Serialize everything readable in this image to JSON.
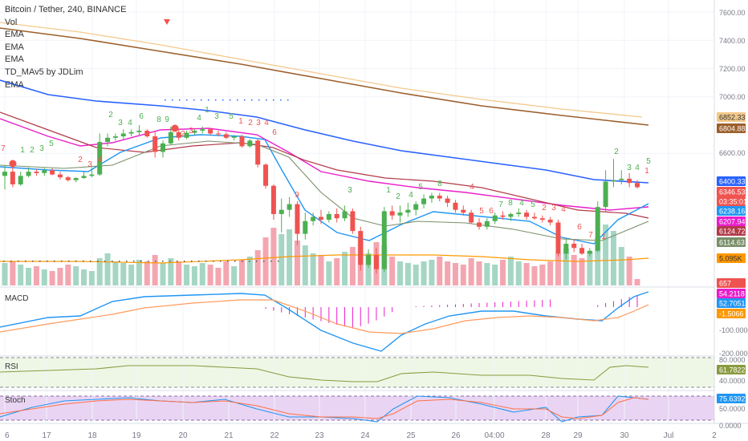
{
  "header": {
    "title": "Bitcoin / Tether, 240, BINANCE",
    "legend": [
      "Vol",
      "EMA",
      "EMA",
      "EMA",
      "TD_MAv5 by JDLim",
      "EMA"
    ]
  },
  "colors": {
    "up": "#4caf50",
    "down": "#ef5350",
    "vol_up": "#a5d6c4",
    "vol_down": "#f4a6b0",
    "ema_blue": "#2962ff",
    "ema_brown": "#9c5f2c",
    "ema_tan": "#f3c98b",
    "ema_magenta": "#e91ecb",
    "ema_dark_red": "#b23a48",
    "ema_light_blue": "#2196f3",
    "ema_grey_green": "#7a8f6a",
    "ema_orange": "#ff9800",
    "macd_line": "#2196f3",
    "signal_line": "#ff9a5c",
    "rsi_line": "#8a9a3f",
    "rsi_band": "#eef7e6",
    "stoch_band": "#e9d4f3",
    "stoch_k": "#2196f3",
    "stoch_d": "#ff7043"
  },
  "chart_data": {
    "type": "candlestick",
    "x_labels": [
      "6",
      "17",
      "18",
      "19",
      "20",
      "21",
      "22",
      "23",
      "24",
      "25",
      "26",
      "04:00",
      "28",
      "29",
      "30",
      "Jul",
      "2"
    ],
    "price_axis": {
      "ticks": [
        "7600.00",
        "7400.00",
        "7200.00",
        "7000.00",
        "6600.00"
      ],
      "labels": [
        {
          "text": "6852.33",
          "color": "#f3c98b",
          "dark": true
        },
        {
          "text": "6804.88",
          "color": "#9c5f2c",
          "dark": false
        },
        {
          "text": "6400.33",
          "color": "#2962ff",
          "dark": false
        },
        {
          "text": "6346.53",
          "color": "#ef5350",
          "dark": false
        },
        {
          "text": "03:35:01",
          "color": "#ef5350",
          "dark": false
        },
        {
          "text": "6238.16",
          "color": "#2196f3",
          "dark": false
        },
        {
          "text": "6207.94",
          "color": "#e91ecb",
          "dark": false
        },
        {
          "text": "6124.72",
          "color": "#b23a48",
          "dark": false
        },
        {
          "text": "6114.63",
          "color": "#7a8f6a",
          "dark": false
        },
        {
          "text": "5.095K",
          "color": "#ff9800",
          "dark": true
        },
        {
          "text": "657",
          "color": "#ef5350",
          "dark": false
        }
      ]
    },
    "macd": {
      "label": "MACD",
      "ticks": [
        "-100.0000",
        "-200.0000"
      ],
      "labels": [
        {
          "text": "54.2118",
          "color": "#e91ecb"
        },
        {
          "text": "52.7051",
          "color": "#2196f3"
        },
        {
          "text": "-1.5066",
          "color": "#ff9800"
        }
      ]
    },
    "rsi": {
      "label": "RSI",
      "ticks": [
        "80.0000",
        "40.0000"
      ],
      "value": "61.7822",
      "value_color": "#8a9a3f"
    },
    "stoch": {
      "label": "Stoch",
      "ticks": [
        "50.0000",
        "0.0000"
      ],
      "value": "75.6392",
      "value_color": "#2196f3"
    },
    "candles": [
      {
        "o": 6440,
        "h": 6510,
        "l": 6345,
        "c": 6470
      },
      {
        "o": 6470,
        "h": 6520,
        "l": 6360,
        "c": 6380
      },
      {
        "o": 6380,
        "h": 6470,
        "l": 6370,
        "c": 6440
      },
      {
        "o": 6440,
        "h": 6500,
        "l": 6430,
        "c": 6470
      },
      {
        "o": 6470,
        "h": 6490,
        "l": 6440,
        "c": 6460
      },
      {
        "o": 6460,
        "h": 6500,
        "l": 6440,
        "c": 6480
      },
      {
        "o": 6480,
        "h": 6495,
        "l": 6445,
        "c": 6450
      },
      {
        "o": 6450,
        "h": 6470,
        "l": 6415,
        "c": 6430
      },
      {
        "o": 6430,
        "h": 6440,
        "l": 6400,
        "c": 6410
      },
      {
        "o": 6410,
        "h": 6430,
        "l": 6395,
        "c": 6425
      },
      {
        "o": 6425,
        "h": 6470,
        "l": 6420,
        "c": 6440
      },
      {
        "o": 6440,
        "h": 6500,
        "l": 6430,
        "c": 6450
      },
      {
        "o": 6450,
        "h": 6740,
        "l": 6440,
        "c": 6680
      },
      {
        "o": 6680,
        "h": 6740,
        "l": 6650,
        "c": 6710
      },
      {
        "o": 6710,
        "h": 6740,
        "l": 6690,
        "c": 6720
      },
      {
        "o": 6720,
        "h": 6770,
        "l": 6700,
        "c": 6740
      },
      {
        "o": 6740,
        "h": 6770,
        "l": 6720,
        "c": 6750
      },
      {
        "o": 6750,
        "h": 6800,
        "l": 6730,
        "c": 6760
      },
      {
        "o": 6760,
        "h": 6770,
        "l": 6710,
        "c": 6720
      },
      {
        "o": 6720,
        "h": 6760,
        "l": 6570,
        "c": 6610
      },
      {
        "o": 6610,
        "h": 6690,
        "l": 6570,
        "c": 6670
      },
      {
        "o": 6670,
        "h": 6790,
        "l": 6660,
        "c": 6750
      },
      {
        "o": 6750,
        "h": 6770,
        "l": 6690,
        "c": 6710
      },
      {
        "o": 6710,
        "h": 6760,
        "l": 6700,
        "c": 6745
      },
      {
        "o": 6745,
        "h": 6770,
        "l": 6730,
        "c": 6760
      },
      {
        "o": 6760,
        "h": 6790,
        "l": 6740,
        "c": 6770
      },
      {
        "o": 6770,
        "h": 6780,
        "l": 6730,
        "c": 6740
      },
      {
        "o": 6740,
        "h": 6760,
        "l": 6720,
        "c": 6735
      },
      {
        "o": 6735,
        "h": 6750,
        "l": 6700,
        "c": 6710
      },
      {
        "o": 6710,
        "h": 6730,
        "l": 6690,
        "c": 6720
      },
      {
        "o": 6720,
        "h": 6730,
        "l": 6640,
        "c": 6650
      },
      {
        "o": 6650,
        "h": 6700,
        "l": 6640,
        "c": 6690
      },
      {
        "o": 6690,
        "h": 6700,
        "l": 6500,
        "c": 6520
      },
      {
        "o": 6520,
        "h": 6530,
        "l": 6350,
        "c": 6370
      },
      {
        "o": 6370,
        "h": 6380,
        "l": 6130,
        "c": 6170
      },
      {
        "o": 6170,
        "h": 6280,
        "l": 6040,
        "c": 6200
      },
      {
        "o": 6200,
        "h": 6290,
        "l": 6150,
        "c": 6240
      },
      {
        "o": 6240,
        "h": 6260,
        "l": 5950,
        "c": 6030
      },
      {
        "o": 6030,
        "h": 6180,
        "l": 5990,
        "c": 6120
      },
      {
        "o": 6120,
        "h": 6180,
        "l": 6090,
        "c": 6150
      },
      {
        "o": 6150,
        "h": 6200,
        "l": 6100,
        "c": 6130
      },
      {
        "o": 6130,
        "h": 6190,
        "l": 6110,
        "c": 6170
      },
      {
        "o": 6170,
        "h": 6210,
        "l": 6110,
        "c": 6140
      },
      {
        "o": 6140,
        "h": 6230,
        "l": 6120,
        "c": 6190
      },
      {
        "o": 6190,
        "h": 6210,
        "l": 6030,
        "c": 6050
      },
      {
        "o": 6050,
        "h": 6080,
        "l": 5770,
        "c": 5810
      },
      {
        "o": 5810,
        "h": 5920,
        "l": 5790,
        "c": 5880
      },
      {
        "o": 5880,
        "h": 5930,
        "l": 5750,
        "c": 5780
      },
      {
        "o": 5780,
        "h": 6220,
        "l": 5760,
        "c": 6190
      },
      {
        "o": 6190,
        "h": 6230,
        "l": 6130,
        "c": 6160
      },
      {
        "o": 6160,
        "h": 6230,
        "l": 6110,
        "c": 6180
      },
      {
        "o": 6180,
        "h": 6250,
        "l": 6150,
        "c": 6200
      },
      {
        "o": 6200,
        "h": 6260,
        "l": 6160,
        "c": 6240
      },
      {
        "o": 6240,
        "h": 6310,
        "l": 6210,
        "c": 6280
      },
      {
        "o": 6280,
        "h": 6320,
        "l": 6250,
        "c": 6300
      },
      {
        "o": 6300,
        "h": 6320,
        "l": 6260,
        "c": 6280
      },
      {
        "o": 6280,
        "h": 6300,
        "l": 6220,
        "c": 6250
      },
      {
        "o": 6250,
        "h": 6270,
        "l": 6180,
        "c": 6200
      },
      {
        "o": 6200,
        "h": 6230,
        "l": 6160,
        "c": 6180
      },
      {
        "o": 6180,
        "h": 6200,
        "l": 6100,
        "c": 6110
      },
      {
        "o": 6110,
        "h": 6140,
        "l": 6060,
        "c": 6080
      },
      {
        "o": 6080,
        "h": 6140,
        "l": 6060,
        "c": 6120
      },
      {
        "o": 6120,
        "h": 6180,
        "l": 6100,
        "c": 6160
      },
      {
        "o": 6160,
        "h": 6190,
        "l": 6130,
        "c": 6150
      },
      {
        "o": 6150,
        "h": 6180,
        "l": 6120,
        "c": 6170
      },
      {
        "o": 6170,
        "h": 6210,
        "l": 6150,
        "c": 6180
      },
      {
        "o": 6180,
        "h": 6200,
        "l": 6130,
        "c": 6150
      },
      {
        "o": 6150,
        "h": 6180,
        "l": 6130,
        "c": 6140
      },
      {
        "o": 6140,
        "h": 6160,
        "l": 6110,
        "c": 6130
      },
      {
        "o": 6130,
        "h": 6150,
        "l": 6090,
        "c": 6110
      },
      {
        "o": 6110,
        "h": 6130,
        "l": 5870,
        "c": 5890
      },
      {
        "o": 5890,
        "h": 5990,
        "l": 5850,
        "c": 5960
      },
      {
        "o": 5960,
        "h": 5990,
        "l": 5900,
        "c": 5930
      },
      {
        "o": 5930,
        "h": 5960,
        "l": 5880,
        "c": 5890
      },
      {
        "o": 5890,
        "h": 5930,
        "l": 5870,
        "c": 5910
      },
      {
        "o": 5910,
        "h": 6260,
        "l": 5900,
        "c": 6220
      },
      {
        "o": 6220,
        "h": 6480,
        "l": 6180,
        "c": 6400
      },
      {
        "o": 6400,
        "h": 6560,
        "l": 6360,
        "c": 6410
      },
      {
        "o": 6410,
        "h": 6480,
        "l": 6380,
        "c": 6420
      },
      {
        "o": 6420,
        "h": 6460,
        "l": 6360,
        "c": 6390
      },
      {
        "o": 6390,
        "h": 6410,
        "l": 6350,
        "c": 6360
      }
    ]
  }
}
